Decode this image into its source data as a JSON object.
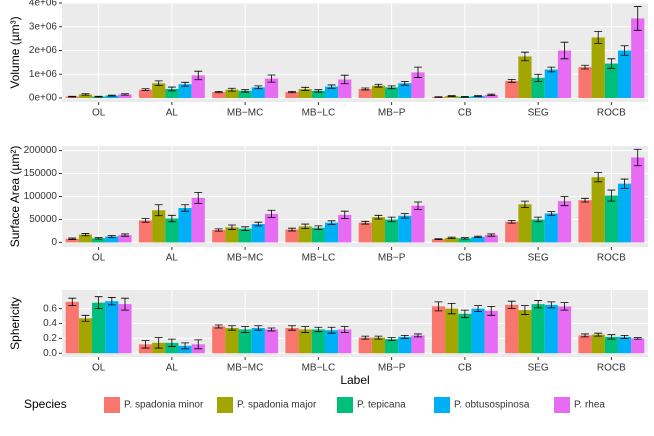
{
  "legend": {
    "title": "Species",
    "entries": [
      {
        "name": "P. spadonia minor",
        "color": "#F8766D"
      },
      {
        "name": "P. spadonia major",
        "color": "#A3A500"
      },
      {
        "name": "P. tepicana",
        "color": "#00BF7D"
      },
      {
        "name": "P. obtusospinosa",
        "color": "#00B0F6"
      },
      {
        "name": "P. rhea",
        "color": "#E76BF3"
      }
    ]
  },
  "chart_data": [
    {
      "type": "bar",
      "y_label": "Volume (µm³)",
      "categories": [
        "OL",
        "AL",
        "MB−MC",
        "MB−LC",
        "MB−P",
        "CB",
        "SEG",
        "ROCB"
      ],
      "ylim": [
        -168000,
        4000000
      ],
      "yticks": [
        {
          "value": 0,
          "label": "0e+00"
        },
        {
          "value": 1000000,
          "label": "1e+06"
        },
        {
          "value": 2000000,
          "label": "2e+06"
        },
        {
          "value": 3000000,
          "label": "3e+06"
        },
        {
          "value": 4000000,
          "label": "4e+06"
        }
      ],
      "grid": true,
      "series": [
        {
          "values": [
            60000,
            350000,
            250000,
            250000,
            380000,
            40000,
            720000,
            1300000
          ],
          "errors": [
            15000,
            40000,
            30000,
            30000,
            40000,
            10000,
            60000,
            80000
          ]
        },
        {
          "values": [
            150000,
            620000,
            350000,
            380000,
            520000,
            80000,
            1750000,
            2550000
          ],
          "errors": [
            30000,
            100000,
            60000,
            70000,
            60000,
            20000,
            180000,
            250000
          ]
        },
        {
          "values": [
            60000,
            380000,
            300000,
            300000,
            450000,
            50000,
            850000,
            1450000
          ],
          "errors": [
            15000,
            80000,
            50000,
            50000,
            60000,
            15000,
            150000,
            200000
          ]
        },
        {
          "values": [
            100000,
            580000,
            450000,
            480000,
            620000,
            80000,
            1200000,
            2000000
          ],
          "errors": [
            20000,
            80000,
            60000,
            70000,
            80000,
            20000,
            100000,
            200000
          ]
        },
        {
          "values": [
            150000,
            950000,
            820000,
            780000,
            1080000,
            130000,
            2000000,
            3350000
          ],
          "errors": [
            30000,
            180000,
            150000,
            180000,
            220000,
            30000,
            350000,
            500000
          ]
        }
      ]
    },
    {
      "type": "bar",
      "y_label": "Surface Area (µm²)",
      "categories": [
        "OL",
        "AL",
        "MB−MC",
        "MB−LC",
        "MB−P",
        "CB",
        "SEG",
        "ROCB"
      ],
      "ylim": [
        -10000,
        210000
      ],
      "yticks": [
        0,
        50000,
        100000,
        150000,
        200000
      ],
      "grid": true,
      "series": [
        {
          "values": [
            8000,
            48000,
            27000,
            28000,
            43000,
            7000,
            45000,
            92000
          ],
          "errors": [
            1500,
            4000,
            2500,
            3000,
            3000,
            1000,
            3000,
            4000
          ]
        },
        {
          "values": [
            17000,
            70000,
            33000,
            35000,
            55000,
            10000,
            83000,
            142000
          ],
          "errors": [
            2500,
            12000,
            5000,
            5000,
            4000,
            1500,
            7000,
            10000
          ]
        },
        {
          "values": [
            9000,
            52000,
            30000,
            32000,
            50000,
            9000,
            50000,
            102000
          ],
          "errors": [
            1500,
            7000,
            4000,
            4000,
            5000,
            1500,
            5000,
            12000
          ]
        },
        {
          "values": [
            13000,
            75000,
            40000,
            43000,
            58000,
            12000,
            63000,
            128000
          ],
          "errors": [
            2000,
            7000,
            4000,
            4000,
            5000,
            1500,
            4000,
            10000
          ]
        },
        {
          "values": [
            16000,
            97000,
            62000,
            60000,
            80000,
            16000,
            90000,
            185000
          ],
          "errors": [
            2500,
            12000,
            8000,
            8000,
            8000,
            2500,
            10000,
            18000
          ]
        }
      ]
    },
    {
      "type": "bar",
      "y_label": "Sphericity",
      "x_label": "Label",
      "categories": [
        "OL",
        "AL",
        "MB−MC",
        "MB−LC",
        "MB−P",
        "CB",
        "SEG",
        "ROCB"
      ],
      "ylim": [
        -0.05,
        0.85
      ],
      "yticks": [
        {
          "value": 0,
          "label": "0.0"
        },
        {
          "value": 0.2,
          "label": "0.2"
        },
        {
          "value": 0.4,
          "label": "0.4"
        },
        {
          "value": 0.6,
          "label": "0.6"
        }
      ],
      "grid": true,
      "series": [
        {
          "values": [
            0.69,
            0.12,
            0.36,
            0.34,
            0.21,
            0.63,
            0.65,
            0.24
          ],
          "errors": [
            0.05,
            0.05,
            0.02,
            0.03,
            0.02,
            0.06,
            0.05,
            0.02
          ]
        },
        {
          "values": [
            0.47,
            0.14,
            0.34,
            0.32,
            0.21,
            0.6,
            0.58,
            0.25
          ],
          "errors": [
            0.04,
            0.07,
            0.03,
            0.04,
            0.02,
            0.07,
            0.06,
            0.02
          ]
        },
        {
          "values": [
            0.68,
            0.14,
            0.32,
            0.32,
            0.19,
            0.53,
            0.66,
            0.22
          ],
          "errors": [
            0.08,
            0.05,
            0.04,
            0.03,
            0.02,
            0.05,
            0.05,
            0.03
          ]
        },
        {
          "values": [
            0.7,
            0.1,
            0.34,
            0.31,
            0.22,
            0.6,
            0.65,
            0.22
          ],
          "errors": [
            0.05,
            0.04,
            0.03,
            0.04,
            0.02,
            0.04,
            0.04,
            0.02
          ]
        },
        {
          "values": [
            0.66,
            0.12,
            0.32,
            0.32,
            0.24,
            0.57,
            0.63,
            0.2
          ],
          "errors": [
            0.08,
            0.06,
            0.02,
            0.04,
            0.02,
            0.06,
            0.05,
            0.01
          ]
        }
      ]
    }
  ]
}
